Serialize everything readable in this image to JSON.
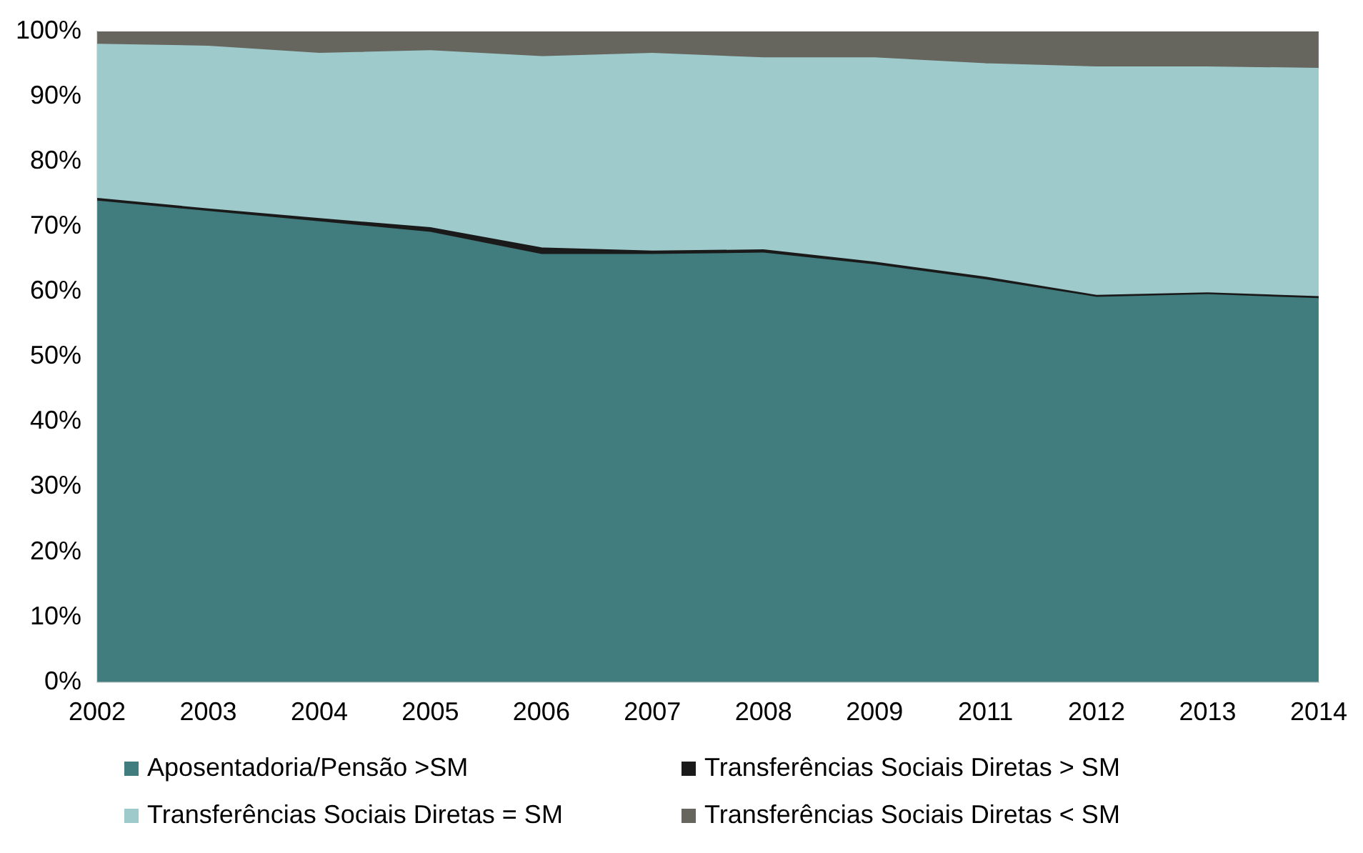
{
  "chart_data": {
    "type": "area",
    "stacked": true,
    "categories": [
      "2002",
      "2003",
      "2004",
      "2005",
      "2006",
      "2007",
      "2008",
      "2009",
      "2011",
      "2012",
      "2013",
      "2014"
    ],
    "series": [
      {
        "name": "Aposentadoria/Pensão >SM",
        "color": "#417c7e",
        "values": [
          73.9,
          72.3,
          70.7,
          69.1,
          65.7,
          65.7,
          65.9,
          64.1,
          61.8,
          59.1,
          59.5,
          58.9
        ]
      },
      {
        "name": "Transferências Sociais Diretas > SM",
        "color": "#1a1a1a",
        "values": [
          0.4,
          0.4,
          0.5,
          0.7,
          1.0,
          0.5,
          0.5,
          0.4,
          0.4,
          0.3,
          0.3,
          0.3
        ]
      },
      {
        "name": "Transferências Sociais Diretas = SM",
        "color": "#9ecacc",
        "values": [
          23.7,
          25.0,
          25.4,
          27.2,
          29.4,
          30.4,
          29.5,
          31.4,
          32.8,
          35.1,
          34.7,
          35.1
        ]
      },
      {
        "name": "Transferências Sociais Diretas < SM",
        "color": "#66665e",
        "values": [
          2.0,
          2.3,
          3.4,
          3.0,
          3.9,
          3.4,
          4.1,
          4.1,
          5.0,
          5.5,
          5.5,
          5.7
        ]
      }
    ],
    "ylim": [
      0,
      100
    ],
    "yticks": [
      {
        "value": 0,
        "label": "0%"
      },
      {
        "value": 10,
        "label": "10%"
      },
      {
        "value": 20,
        "label": "20%"
      },
      {
        "value": 30,
        "label": "30%"
      },
      {
        "value": 40,
        "label": "40%"
      },
      {
        "value": 50,
        "label": "50%"
      },
      {
        "value": 60,
        "label": "60%"
      },
      {
        "value": 70,
        "label": "70%"
      },
      {
        "value": 80,
        "label": "80%"
      },
      {
        "value": 90,
        "label": "90%"
      },
      {
        "value": 100,
        "label": "100%"
      }
    ],
    "grid": false,
    "legend": "bottom"
  }
}
